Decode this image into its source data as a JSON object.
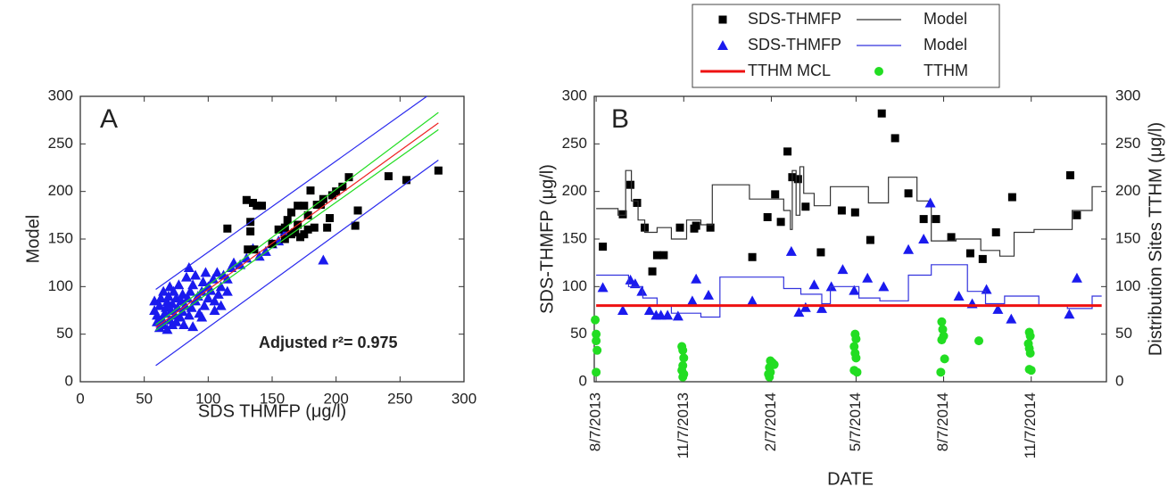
{
  "chart_data": [
    {
      "type": "scatter",
      "panel_label": "A",
      "xlabel": "SDS THMFP (μg/l)",
      "ylabel": "Model",
      "annotation": "Adjusted r²= 0.975",
      "xlim": [
        0,
        300
      ],
      "ylim": [
        0,
        300
      ],
      "xticks": [
        0,
        50,
        100,
        150,
        200,
        250,
        300
      ],
      "yticks": [
        0,
        50,
        100,
        150,
        200,
        250,
        300
      ],
      "series": [
        {
          "style": "markers",
          "marker": "triangle",
          "color": "#1a1aee",
          "x": [
            58,
            58,
            60,
            60,
            62,
            62,
            63,
            64,
            65,
            65,
            66,
            67,
            68,
            68,
            69,
            70,
            70,
            71,
            72,
            72,
            73,
            74,
            75,
            75,
            76,
            77,
            78,
            79,
            80,
            80,
            81,
            82,
            83,
            84,
            85,
            85,
            86,
            87,
            88,
            88,
            90,
            90,
            92,
            93,
            95,
            96,
            97,
            98,
            100,
            100,
            102,
            104,
            105,
            107,
            108,
            110,
            110,
            112,
            115,
            118,
            120,
            125,
            130,
            135,
            140,
            145,
            150,
            155,
            160,
            190,
            105,
            95,
            115
          ],
          "values": [
            85,
            75,
            63,
            70,
            57,
            80,
            88,
            66,
            95,
            60,
            72,
            78,
            84,
            55,
            90,
            65,
            100,
            75,
            60,
            82,
            95,
            70,
            88,
            63,
            78,
            102,
            68,
            85,
            92,
            74,
            60,
            80,
            110,
            88,
            120,
            70,
            95,
            78,
            58,
            102,
            85,
            112,
            90,
            72,
            95,
            105,
            80,
            115,
            88,
            100,
            96,
            108,
            85,
            115,
            92,
            100,
            80,
            112,
            108,
            120,
            125,
            123,
            130,
            140,
            132,
            137,
            145,
            148,
            158,
            128,
            75,
            68,
            95
          ]
        },
        {
          "style": "markers",
          "marker": "square",
          "color": "#000000",
          "x": [
            115,
            130,
            133,
            135,
            138,
            142,
            133,
            131,
            136,
            150,
            155,
            160,
            162,
            165,
            170,
            175,
            168,
            172,
            178,
            180,
            185,
            190,
            195,
            197,
            205,
            210,
            215,
            217,
            241,
            255,
            280,
            160,
            165,
            175,
            193,
            200,
            178,
            183,
            170,
            188
          ],
          "values": [
            161,
            191,
            168,
            188,
            185,
            185,
            158,
            139,
            139,
            145,
            160,
            162,
            170,
            178,
            185,
            185,
            157,
            152,
            160,
            201,
            186,
            192,
            172,
            196,
            205,
            215,
            164,
            180,
            216,
            212,
            222,
            150,
            155,
            155,
            162,
            200,
            175,
            162,
            165,
            186
          ]
        },
        {
          "style": "line",
          "color": "#2a2aee",
          "x": [
            59,
            271
          ],
          "values": [
            97,
            300
          ]
        },
        {
          "style": "line",
          "color": "#2a2aee",
          "x": [
            59,
            280
          ],
          "values": [
            17,
            233
          ]
        },
        {
          "style": "line",
          "color": "#22dd22",
          "x": [
            59,
            280
          ],
          "values": [
            60,
            283
          ]
        },
        {
          "style": "line",
          "color": "#22dd22",
          "x": [
            59,
            280
          ],
          "values": [
            54,
            265
          ]
        },
        {
          "style": "line",
          "color": "#ee2222",
          "x": [
            59,
            280
          ],
          "values": [
            57,
            272
          ]
        }
      ]
    },
    {
      "type": "scatter",
      "panel_label": "B",
      "xlabel": "DATE",
      "ylabel": "SDS-THMFP (μg/l)",
      "y2label": "Distribution Sites TTHM (μg/l)",
      "xlim": [
        "2013-08-05",
        "2015-01-25"
      ],
      "ylim": [
        0,
        300
      ],
      "y2lim": [
        0,
        300
      ],
      "xticks": [
        {
          "value": "2013-08-07",
          "label": "8/7/2013"
        },
        {
          "value": "2013-11-07",
          "label": "11/7/2013"
        },
        {
          "value": "2014-02-07",
          "label": "2/7/2014"
        },
        {
          "value": "2014-05-07",
          "label": "5/7/2014"
        },
        {
          "value": "2014-08-07",
          "label": "8/7/2014"
        },
        {
          "value": "2014-11-07",
          "label": "11/7/2014"
        }
      ],
      "yticks": [
        0,
        50,
        100,
        150,
        200,
        250,
        300
      ],
      "y2ticks": [
        0,
        50,
        100,
        150,
        200,
        250,
        300
      ],
      "legend": "top-outside",
      "series": [
        {
          "name": "SDS-THMFP",
          "style": "markers",
          "marker": "square",
          "color": "#000000",
          "x": [
            "2013-08-14",
            "2013-09-04",
            "2013-09-12",
            "2013-09-19",
            "2013-09-27",
            "2013-10-05",
            "2013-10-10",
            "2013-10-17",
            "2013-11-03",
            "2013-11-18",
            "2013-11-20",
            "2013-12-05",
            "2014-01-18",
            "2014-02-03",
            "2014-02-11",
            "2014-02-17",
            "2014-02-24",
            "2014-03-01",
            "2014-03-07",
            "2014-03-15",
            "2014-03-31",
            "2014-04-22",
            "2014-05-06",
            "2014-05-22",
            "2014-06-03",
            "2014-06-17",
            "2014-07-01",
            "2014-07-17",
            "2014-07-30",
            "2014-08-15",
            "2014-09-04",
            "2014-09-17",
            "2014-10-01",
            "2014-10-18",
            "2014-12-18",
            "2014-12-25"
          ],
          "values": [
            142,
            176,
            207,
            188,
            162,
            116,
            133,
            133,
            162,
            161,
            164,
            162,
            131,
            173,
            197,
            168,
            242,
            215,
            213,
            184,
            136,
            180,
            178,
            149,
            282,
            256,
            198,
            171,
            171,
            152,
            135,
            129,
            157,
            194,
            217,
            175
          ]
        },
        {
          "name": "Model",
          "style": "line",
          "color": "#333333",
          "x": [
            "2013-08-07",
            "2013-08-30",
            "2013-08-30",
            "2013-09-07",
            "2013-09-07",
            "2013-09-13",
            "2013-09-13",
            "2013-09-20",
            "2013-09-20",
            "2013-09-27",
            "2013-09-27",
            "2013-10-10",
            "2013-10-10",
            "2013-10-25",
            "2013-10-25",
            "2013-11-10",
            "2013-11-10",
            "2013-11-25",
            "2013-11-25",
            "2013-12-07",
            "2013-12-07",
            "2014-01-15",
            "2014-01-15",
            "2014-02-20",
            "2014-02-20",
            "2014-02-27",
            "2014-02-27",
            "2014-03-01",
            "2014-03-01",
            "2014-03-05",
            "2014-03-05",
            "2014-03-09",
            "2014-03-09",
            "2014-03-13",
            "2014-03-13",
            "2014-03-24",
            "2014-03-24",
            "2014-04-10",
            "2014-04-10",
            "2014-05-20",
            "2014-05-20",
            "2014-06-10",
            "2014-06-10",
            "2014-07-10",
            "2014-07-10",
            "2014-07-25",
            "2014-07-25",
            "2014-08-20",
            "2014-08-20",
            "2014-09-15",
            "2014-09-15",
            "2014-10-05",
            "2014-10-05",
            "2014-10-20",
            "2014-10-20",
            "2014-11-10",
            "2014-11-10",
            "2014-12-20",
            "2014-12-20",
            "2015-01-10",
            "2015-01-10",
            "2015-01-20"
          ],
          "values": [
            182,
            182,
            175,
            175,
            222,
            222,
            190,
            190,
            170,
            170,
            157,
            157,
            162,
            162,
            150,
            150,
            170,
            170,
            165,
            165,
            207,
            207,
            192,
            192,
            180,
            180,
            160,
            160,
            222,
            222,
            175,
            175,
            226,
            226,
            198,
            198,
            185,
            185,
            205,
            205,
            188,
            188,
            215,
            215,
            190,
            190,
            148,
            148,
            150,
            150,
            138,
            138,
            132,
            132,
            157,
            157,
            160,
            160,
            180,
            180,
            205,
            205
          ]
        },
        {
          "name": "SDS-THMFP",
          "style": "markers",
          "marker": "triangle",
          "color": "#1a1aee",
          "x": [
            "2013-08-14",
            "2013-09-04",
            "2013-09-12",
            "2013-09-17",
            "2013-09-24",
            "2013-10-02",
            "2013-10-09",
            "2013-10-14",
            "2013-10-21",
            "2013-11-01",
            "2013-11-16",
            "2013-11-20",
            "2013-12-03",
            "2014-01-18",
            "2014-02-28",
            "2014-03-08",
            "2014-03-15",
            "2014-03-24",
            "2014-04-01",
            "2014-04-11",
            "2014-04-23",
            "2014-05-05",
            "2014-05-19",
            "2014-06-05",
            "2014-07-01",
            "2014-07-17",
            "2014-07-24",
            "2014-08-23",
            "2014-09-06",
            "2014-09-21",
            "2014-10-03",
            "2014-10-17",
            "2014-12-17",
            "2014-12-25"
          ],
          "values": [
            99,
            75,
            107,
            103,
            95,
            75,
            70,
            70,
            70,
            69,
            85,
            108,
            91,
            85,
            137,
            73,
            78,
            102,
            77,
            100,
            118,
            96,
            109,
            100,
            139,
            150,
            188,
            90,
            82,
            97,
            76,
            66,
            71,
            109
          ]
        },
        {
          "name": "Model",
          "style": "line",
          "color": "#3333dd",
          "x": [
            "2013-08-07",
            "2013-09-10",
            "2013-09-10",
            "2013-09-25",
            "2013-09-25",
            "2013-10-10",
            "2013-10-10",
            "2013-10-25",
            "2013-10-25",
            "2013-11-25",
            "2013-11-25",
            "2013-12-15",
            "2013-12-15",
            "2014-02-20",
            "2014-02-20",
            "2014-03-10",
            "2014-03-10",
            "2014-04-01",
            "2014-04-01",
            "2014-04-10",
            "2014-04-10",
            "2014-05-10",
            "2014-05-10",
            "2014-06-01",
            "2014-06-01",
            "2014-07-01",
            "2014-07-01",
            "2014-07-25",
            "2014-07-25",
            "2014-09-01",
            "2014-09-01",
            "2014-09-20",
            "2014-09-20",
            "2014-10-10",
            "2014-10-10",
            "2014-11-15",
            "2014-11-15",
            "2014-12-15",
            "2014-12-15",
            "2015-01-10",
            "2015-01-10",
            "2015-01-20"
          ],
          "values": [
            112,
            112,
            100,
            100,
            88,
            88,
            80,
            80,
            72,
            72,
            68,
            68,
            110,
            110,
            98,
            98,
            92,
            92,
            82,
            82,
            100,
            100,
            88,
            88,
            85,
            85,
            112,
            112,
            123,
            123,
            95,
            95,
            82,
            82,
            90,
            90,
            80,
            80,
            77,
            77,
            90,
            90
          ]
        },
        {
          "name": "TTHM MCL",
          "style": "line",
          "color": "#ee1111",
          "width": 3,
          "x": [
            "2013-08-07",
            "2015-01-20"
          ],
          "values": [
            80,
            80
          ]
        },
        {
          "name": "TTHM",
          "style": "markers",
          "marker": "circle",
          "color": "#22dd22",
          "axis": "y2",
          "x": [
            "2013-08-06",
            "2013-08-07",
            "2013-08-07",
            "2013-08-08",
            "2013-08-07",
            "2013-11-05",
            "2013-11-06",
            "2013-11-07",
            "2013-11-06",
            "2013-11-05",
            "2013-11-07",
            "2013-11-06",
            "2014-02-06",
            "2014-02-08",
            "2014-02-10",
            "2014-02-05",
            "2014-02-06",
            "2014-02-04",
            "2014-02-05",
            "2014-05-06",
            "2014-05-07",
            "2014-05-05",
            "2014-05-06",
            "2014-05-07",
            "2014-05-05",
            "2014-05-08",
            "2014-08-05",
            "2014-08-06",
            "2014-08-07",
            "2014-08-05",
            "2014-08-08",
            "2014-08-04",
            "2014-09-13",
            "2014-11-05",
            "2014-11-06",
            "2014-11-04",
            "2014-11-05",
            "2014-11-06",
            "2014-11-05",
            "2014-11-07"
          ],
          "values": [
            65,
            50,
            43,
            33,
            10,
            37,
            33,
            25,
            17,
            12,
            8,
            5,
            22,
            20,
            18,
            15,
            10,
            8,
            5,
            50,
            45,
            37,
            30,
            25,
            12,
            10,
            63,
            55,
            48,
            44,
            24,
            10,
            43,
            52,
            48,
            40,
            35,
            30,
            13,
            12
          ]
        }
      ]
    }
  ]
}
